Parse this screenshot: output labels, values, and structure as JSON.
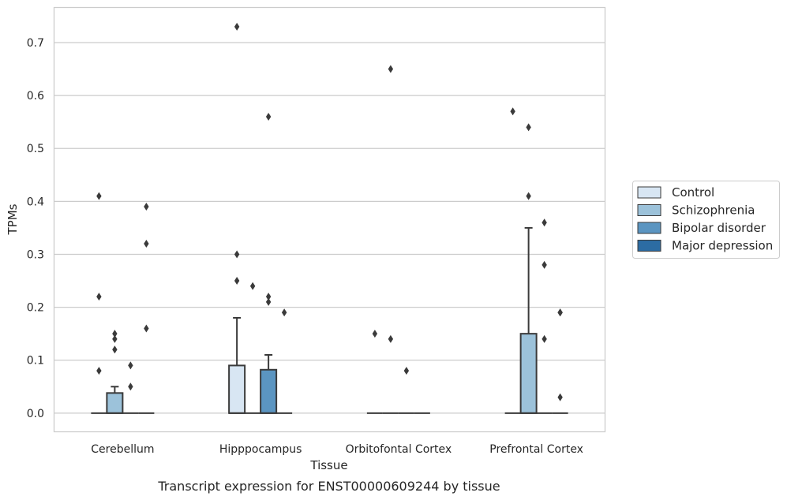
{
  "caption": "Transcript expression for ENST00000609244 by tissue",
  "chart_data": {
    "type": "box",
    "xlabel": "Tissue",
    "ylabel": "TPMs",
    "ylim": [
      -0.036,
      0.767
    ],
    "yticks": [
      0.0,
      0.1,
      0.2,
      0.3,
      0.4,
      0.5,
      0.6,
      0.7
    ],
    "ytick_labels": [
      "0.0",
      "0.1",
      "0.2",
      "0.3",
      "0.4",
      "0.5",
      "0.6",
      "0.7"
    ],
    "grid": true,
    "legend_position": "right",
    "categories": [
      "Cerebellum",
      "Hipppocampus",
      "Orbitofontal Cortex",
      "Prefrontal Cortex"
    ],
    "series": [
      {
        "name": "Control",
        "color": "#d8e6f3",
        "boxes": [
          {
            "q1": 0,
            "median": 0,
            "q3": 0,
            "whisker_low": 0,
            "whisker_high": 0,
            "outliers": [
              0.41,
              0.22,
              0.08
            ]
          },
          {
            "q1": 0,
            "median": 0,
            "q3": 0.09,
            "whisker_low": 0,
            "whisker_high": 0.18,
            "outliers": [
              0.73,
              0.3,
              0.25
            ]
          },
          {
            "q1": 0,
            "median": 0,
            "q3": 0,
            "whisker_low": 0,
            "whisker_high": 0,
            "outliers": [
              0.15
            ]
          },
          {
            "q1": 0,
            "median": 0,
            "q3": 0,
            "whisker_low": 0,
            "whisker_high": 0,
            "outliers": [
              0.57
            ]
          }
        ]
      },
      {
        "name": "Schizophrenia",
        "color": "#9cc2da",
        "boxes": [
          {
            "q1": 0,
            "median": 0,
            "q3": 0.038,
            "whisker_low": 0,
            "whisker_high": 0.05,
            "outliers": [
              0.15,
              0.14,
              0.12
            ]
          },
          {
            "q1": 0,
            "median": 0,
            "q3": 0,
            "whisker_low": 0,
            "whisker_high": 0,
            "outliers": [
              0.24
            ]
          },
          {
            "q1": 0,
            "median": 0,
            "q3": 0,
            "whisker_low": 0,
            "whisker_high": 0,
            "outliers": [
              0.65,
              0.14
            ]
          },
          {
            "q1": 0,
            "median": 0,
            "q3": 0.15,
            "whisker_low": 0,
            "whisker_high": 0.35,
            "outliers": [
              0.54,
              0.41
            ]
          }
        ]
      },
      {
        "name": "Bipolar disorder",
        "color": "#5b95c1",
        "boxes": [
          {
            "q1": 0,
            "median": 0,
            "q3": 0,
            "whisker_low": 0,
            "whisker_high": 0,
            "outliers": [
              0.09,
              0.05
            ]
          },
          {
            "q1": 0,
            "median": 0,
            "q3": 0.082,
            "whisker_low": 0,
            "whisker_high": 0.11,
            "outliers": [
              0.56,
              0.22,
              0.21
            ]
          },
          {
            "q1": 0,
            "median": 0,
            "q3": 0,
            "whisker_low": 0,
            "whisker_high": 0,
            "outliers": [
              0.08
            ]
          },
          {
            "q1": 0,
            "median": 0,
            "q3": 0,
            "whisker_low": 0,
            "whisker_high": 0,
            "outliers": [
              0.36,
              0.28,
              0.14
            ]
          }
        ]
      },
      {
        "name": "Major depression",
        "color": "#2c6ca3",
        "boxes": [
          {
            "q1": 0,
            "median": 0,
            "q3": 0,
            "whisker_low": 0,
            "whisker_high": 0,
            "outliers": [
              0.39,
              0.32,
              0.16
            ]
          },
          {
            "q1": 0,
            "median": 0,
            "q3": 0,
            "whisker_low": 0,
            "whisker_high": 0,
            "outliers": [
              0.19
            ]
          },
          {
            "q1": 0,
            "median": 0,
            "q3": 0,
            "whisker_low": 0,
            "whisker_high": 0,
            "outliers": []
          },
          {
            "q1": 0,
            "median": 0,
            "q3": 0,
            "whisker_low": 0,
            "whisker_high": 0,
            "outliers": [
              0.19,
              0.19,
              0.03
            ]
          }
        ]
      }
    ]
  }
}
